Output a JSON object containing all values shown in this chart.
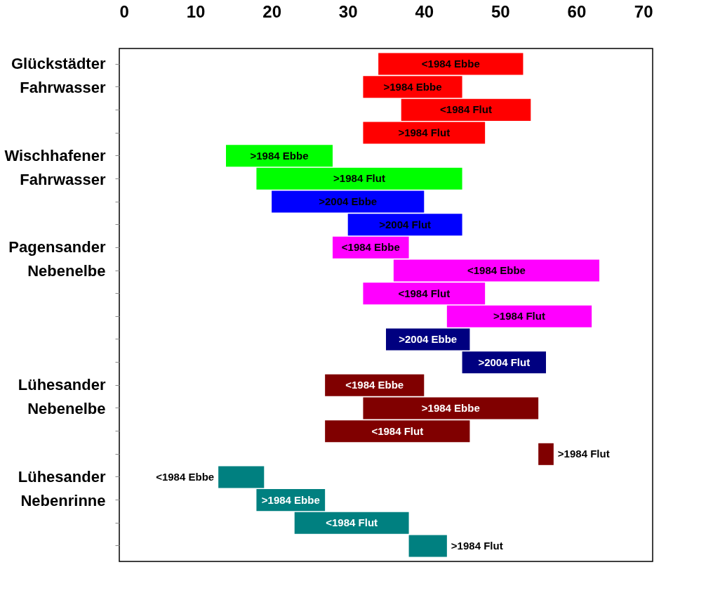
{
  "chart_data": {
    "type": "bar",
    "orientation": "horizontal",
    "categories": [
      "Glückstädter Fahrwasser",
      null,
      null,
      null,
      "Wischhafener Fahrwasser",
      null,
      null,
      null,
      "Pagensander Nebenelbe",
      null,
      null,
      null,
      null,
      null,
      "Lühesander Nebenelbe",
      null,
      null,
      null,
      "Lühesander Nebenrinne",
      null,
      null,
      null
    ],
    "base": [
      34,
      32,
      37,
      32,
      14,
      18,
      20,
      30,
      28,
      36,
      32,
      43,
      35,
      45,
      27,
      32,
      27,
      55,
      13,
      18,
      23,
      38
    ],
    "values": [
      19,
      13,
      17,
      16,
      14,
      27,
      20,
      15,
      10,
      27,
      16,
      19,
      11,
      11,
      13,
      23,
      19,
      2,
      6,
      9,
      15,
      5
    ],
    "colors": [
      "#ff0000",
      "#ff0000",
      "#ff0000",
      "#ff0000",
      "#00ff00",
      "#00ff00",
      "#0000ff",
      "#0000ff",
      "#ff00ff",
      "#ff00ff",
      "#ff00ff",
      "#ff00ff",
      "#000080",
      "#000080",
      "#800000",
      "#800000",
      "#800000",
      "#800000",
      "#008080",
      "#008080",
      "#008080",
      "#008080"
    ],
    "value_labels": [
      "<1984 Ebbe",
      ">1984 Ebbe",
      "<1984 Flut",
      ">1984 Flut",
      ">1984 Ebbe",
      ">1984 Flut",
      ">2004 Ebbe",
      ">2004 Flut",
      "<1984 Ebbe",
      "<1984 Ebbe",
      "<1984 Flut",
      ">1984 Flut",
      ">2004 Ebbe",
      ">2004 Flut",
      "<1984 Ebbe",
      ">1984 Ebbe",
      "<1984 Flut",
      ">1984 Flut",
      "<1984 Ebbe",
      ">1984 Ebbe",
      "<1984 Flut",
      ">1984 Flut"
    ],
    "xlim": [
      0,
      70
    ],
    "xticks": [
      0,
      10,
      20,
      30,
      40,
      50,
      60,
      70
    ]
  }
}
